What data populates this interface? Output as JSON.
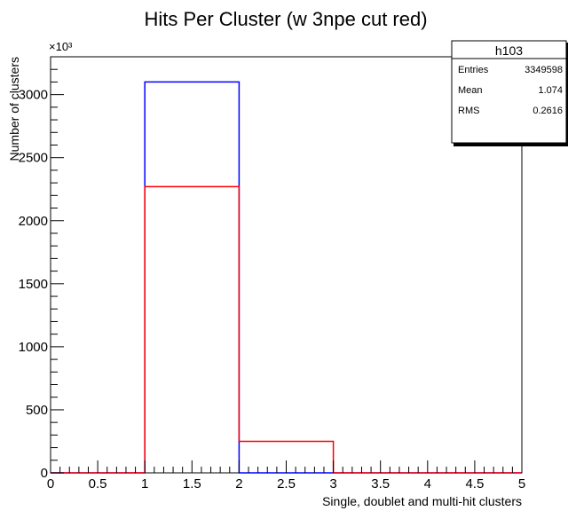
{
  "chart_data": {
    "type": "histogram",
    "title": "Hits Per Cluster (w 3npe cut red)",
    "xlabel": "Single, doublet and multi-hit clusters",
    "ylabel": "Number of clusters",
    "y_multiplier": "×10³",
    "xlim": [
      0,
      5
    ],
    "ylim": [
      0,
      3300
    ],
    "x_ticks": [
      "0",
      "0.5",
      "1",
      "1.5",
      "2",
      "2.5",
      "3",
      "3.5",
      "4",
      "4.5",
      "5"
    ],
    "y_ticks": [
      "0",
      "500",
      "1000",
      "1500",
      "2000",
      "2500",
      "3000"
    ],
    "bin_edges": [
      0,
      1,
      2,
      3,
      4,
      5
    ],
    "series": [
      {
        "color": "#0000ff",
        "values": [
          0,
          3100,
          0,
          0,
          0
        ]
      },
      {
        "color": "#ff0000",
        "values": [
          0,
          2270,
          250,
          0,
          0
        ]
      }
    ],
    "stats_box": {
      "name": "h103",
      "rows": [
        {
          "label": "Entries",
          "value": "3349598"
        },
        {
          "label": "Mean",
          "value": "1.074"
        },
        {
          "label": "RMS",
          "value": "0.2616"
        }
      ]
    }
  }
}
